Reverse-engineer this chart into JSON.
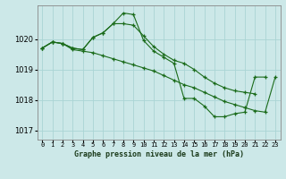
{
  "title": "Graphe pression niveau de la mer (hPa)",
  "bg_color": "#cce8e8",
  "grid_color": "#aad4d4",
  "line_color": "#1a6b1a",
  "marker_color": "#1a6b1a",
  "ylim": [
    1016.7,
    1021.1
  ],
  "yticks": [
    1017,
    1018,
    1019,
    1020
  ],
  "xlim": [
    -0.5,
    23.5
  ],
  "xticks": [
    0,
    1,
    2,
    3,
    4,
    5,
    6,
    7,
    8,
    9,
    10,
    11,
    12,
    13,
    14,
    15,
    16,
    17,
    18,
    19,
    20,
    21,
    22,
    23
  ],
  "series": [
    [
      1019.7,
      1019.9,
      1019.85,
      1019.7,
      1019.65,
      1020.05,
      1020.2,
      1020.5,
      1020.85,
      1020.8,
      1019.95,
      1019.6,
      1019.4,
      1019.2,
      1018.05,
      1018.05,
      1017.8,
      1017.45,
      1017.45,
      1017.55,
      1017.6,
      1018.75,
      1018.75,
      null
    ],
    [
      1019.7,
      1019.9,
      1019.85,
      1019.65,
      1019.6,
      1019.55,
      1019.45,
      1019.35,
      1019.25,
      1019.15,
      1019.05,
      1018.95,
      1018.8,
      1018.65,
      1018.5,
      1018.4,
      1018.25,
      1018.1,
      1017.95,
      1017.85,
      1017.75,
      1017.65,
      1017.6,
      1018.75
    ],
    [
      1019.7,
      1019.9,
      1019.85,
      1019.7,
      1019.65,
      1020.05,
      1020.2,
      1020.5,
      1020.5,
      1020.45,
      1020.1,
      1019.75,
      1019.5,
      1019.3,
      1019.2,
      1019.0,
      1018.75,
      1018.55,
      1018.4,
      1018.3,
      1018.25,
      1018.2,
      null,
      null
    ]
  ],
  "xlabel_fontsize": 6.0,
  "ytick_fontsize": 6.0,
  "xtick_fontsize": 5.0
}
